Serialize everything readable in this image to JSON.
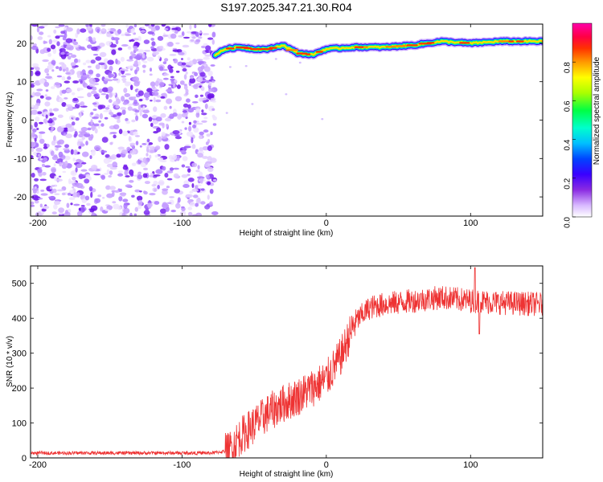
{
  "title": "S197.2025.347.21.30.R04",
  "chart_data": [
    {
      "type": "heatmap",
      "name": "spectrogram",
      "xlabel": "Height of straight line (km)",
      "ylabel": "Frequency (Hz)",
      "xlim": [
        -205,
        150
      ],
      "ylim": [
        -25,
        25
      ],
      "xticks": [
        -200,
        -100,
        0,
        100
      ],
      "yticks": [
        20,
        10,
        0,
        -10,
        -20
      ],
      "noise_region_x": [
        -205,
        -77
      ],
      "signal_onset_x": -77,
      "ridge_frequency_x": [
        -77,
        -70,
        -60,
        -50,
        -40,
        -30,
        -20,
        -10,
        0,
        20,
        40,
        60,
        80,
        100,
        120,
        150
      ],
      "ridge_frequency_hz": [
        17,
        18.5,
        19,
        18.5,
        18.5,
        19.5,
        17.5,
        17,
        18.5,
        19,
        19,
        19.5,
        20.5,
        20,
        20.5,
        20.5
      ],
      "colorbar": {
        "label": "Normalized spectral amplitude",
        "range": [
          0,
          1
        ],
        "ticks": [
          "0.0",
          "0.2",
          "0.4",
          "0.6",
          "0.8"
        ],
        "colors": [
          "#ffffff",
          "#d8b8ff",
          "#8a2be2",
          "#3a00ff",
          "#0044ff",
          "#00bfff",
          "#00ffcc",
          "#00ff44",
          "#aaff00",
          "#ffff00",
          "#ff9900",
          "#ff3300",
          "#ff0044",
          "#ff00aa"
        ]
      }
    },
    {
      "type": "line",
      "name": "snr",
      "xlabel": "Height of straight line (km)",
      "ylabel": "SNR (10 * v/v)",
      "xlim": [
        -205,
        150
      ],
      "ylim": [
        0,
        550
      ],
      "xticks": [
        -200,
        -100,
        0,
        100
      ],
      "yticks": [
        0,
        100,
        200,
        300,
        400,
        500
      ],
      "color": "#ee3333",
      "envelope_x": [
        -205,
        -80,
        -68,
        -60,
        -50,
        -40,
        -30,
        -20,
        -10,
        0,
        10,
        20,
        30,
        40,
        50,
        60,
        80,
        100,
        120,
        150
      ],
      "envelope_y": [
        12,
        12,
        18,
        60,
        95,
        130,
        155,
        175,
        200,
        225,
        290,
        390,
        430,
        440,
        445,
        450,
        460,
        450,
        445,
        440
      ],
      "noise_amplitude": 10,
      "noise_amplitude_signal": 35,
      "notable_peaks": [
        {
          "x": 103,
          "y": 545
        },
        {
          "x": 106,
          "y": 355
        }
      ]
    }
  ]
}
